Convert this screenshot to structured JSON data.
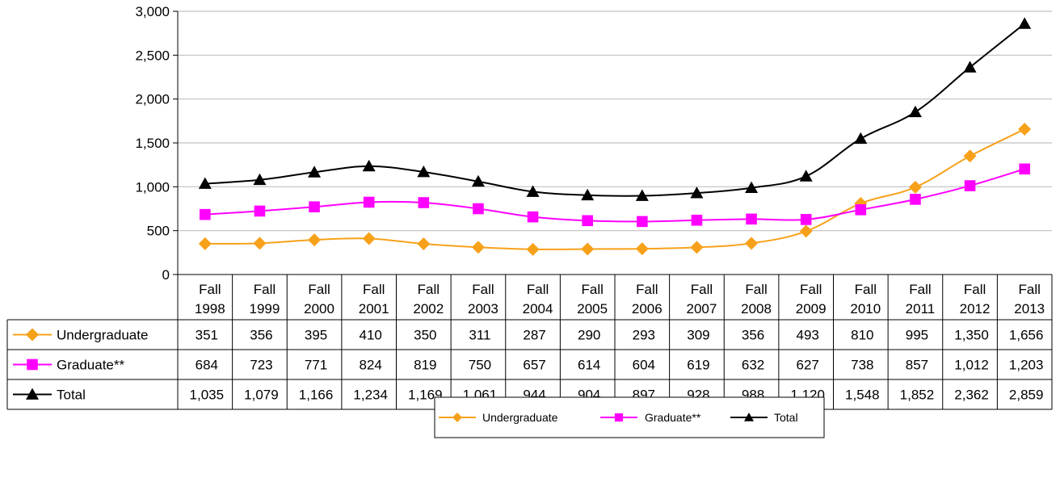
{
  "chart_data": {
    "type": "line",
    "categories": [
      [
        "Fall",
        "1998"
      ],
      [
        "Fall",
        "1999"
      ],
      [
        "Fall",
        "2000"
      ],
      [
        "Fall",
        "2001"
      ],
      [
        "Fall",
        "2002"
      ],
      [
        "Fall",
        "2003"
      ],
      [
        "Fall",
        "2004"
      ],
      [
        "Fall",
        "2005"
      ],
      [
        "Fall",
        "2006"
      ],
      [
        "Fall",
        "2007"
      ],
      [
        "Fall",
        "2008"
      ],
      [
        "Fall",
        "2009"
      ],
      [
        "Fall",
        "2010"
      ],
      [
        "Fall",
        "2011"
      ],
      [
        "Fall",
        "2012"
      ],
      [
        "Fall",
        "2013"
      ]
    ],
    "ylim": [
      0,
      3000
    ],
    "yticks": [
      0,
      500,
      1000,
      1500,
      2000,
      2500,
      3000
    ],
    "ytick_labels": [
      "0",
      "500",
      "1,000",
      "1,500",
      "2,000",
      "2,500",
      "3,000"
    ],
    "grid": true,
    "legend_position": "bottom",
    "series": [
      {
        "name": "Undergraduate",
        "color": "#f7a11a",
        "marker": "diamond",
        "values": [
          351,
          356,
          395,
          410,
          350,
          311,
          287,
          290,
          293,
          309,
          356,
          493,
          810,
          995,
          1350,
          1656
        ],
        "labels": [
          "351",
          "356",
          "395",
          "410",
          "350",
          "311",
          "287",
          "290",
          "293",
          "309",
          "356",
          "493",
          "810",
          "995",
          "1,350",
          "1,656"
        ]
      },
      {
        "name": "Graduate**",
        "color": "#ff00ff",
        "marker": "square",
        "values": [
          684,
          723,
          771,
          824,
          819,
          750,
          657,
          614,
          604,
          619,
          632,
          627,
          738,
          857,
          1012,
          1203
        ],
        "labels": [
          "684",
          "723",
          "771",
          "824",
          "819",
          "750",
          "657",
          "614",
          "604",
          "619",
          "632",
          "627",
          "738",
          "857",
          "1,012",
          "1,203"
        ]
      },
      {
        "name": "Total",
        "color": "#000000",
        "marker": "triangle",
        "values": [
          1035,
          1079,
          1166,
          1234,
          1169,
          1061,
          944,
          904,
          897,
          928,
          988,
          1120,
          1548,
          1852,
          2362,
          2859
        ],
        "labels": [
          "1,035",
          "1,079",
          "1,166",
          "1,234",
          "1,169",
          "1,061",
          "944",
          "904",
          "897",
          "928",
          "988",
          "1,120",
          "1,548",
          "1,852",
          "2,362",
          "2,859"
        ]
      }
    ]
  }
}
